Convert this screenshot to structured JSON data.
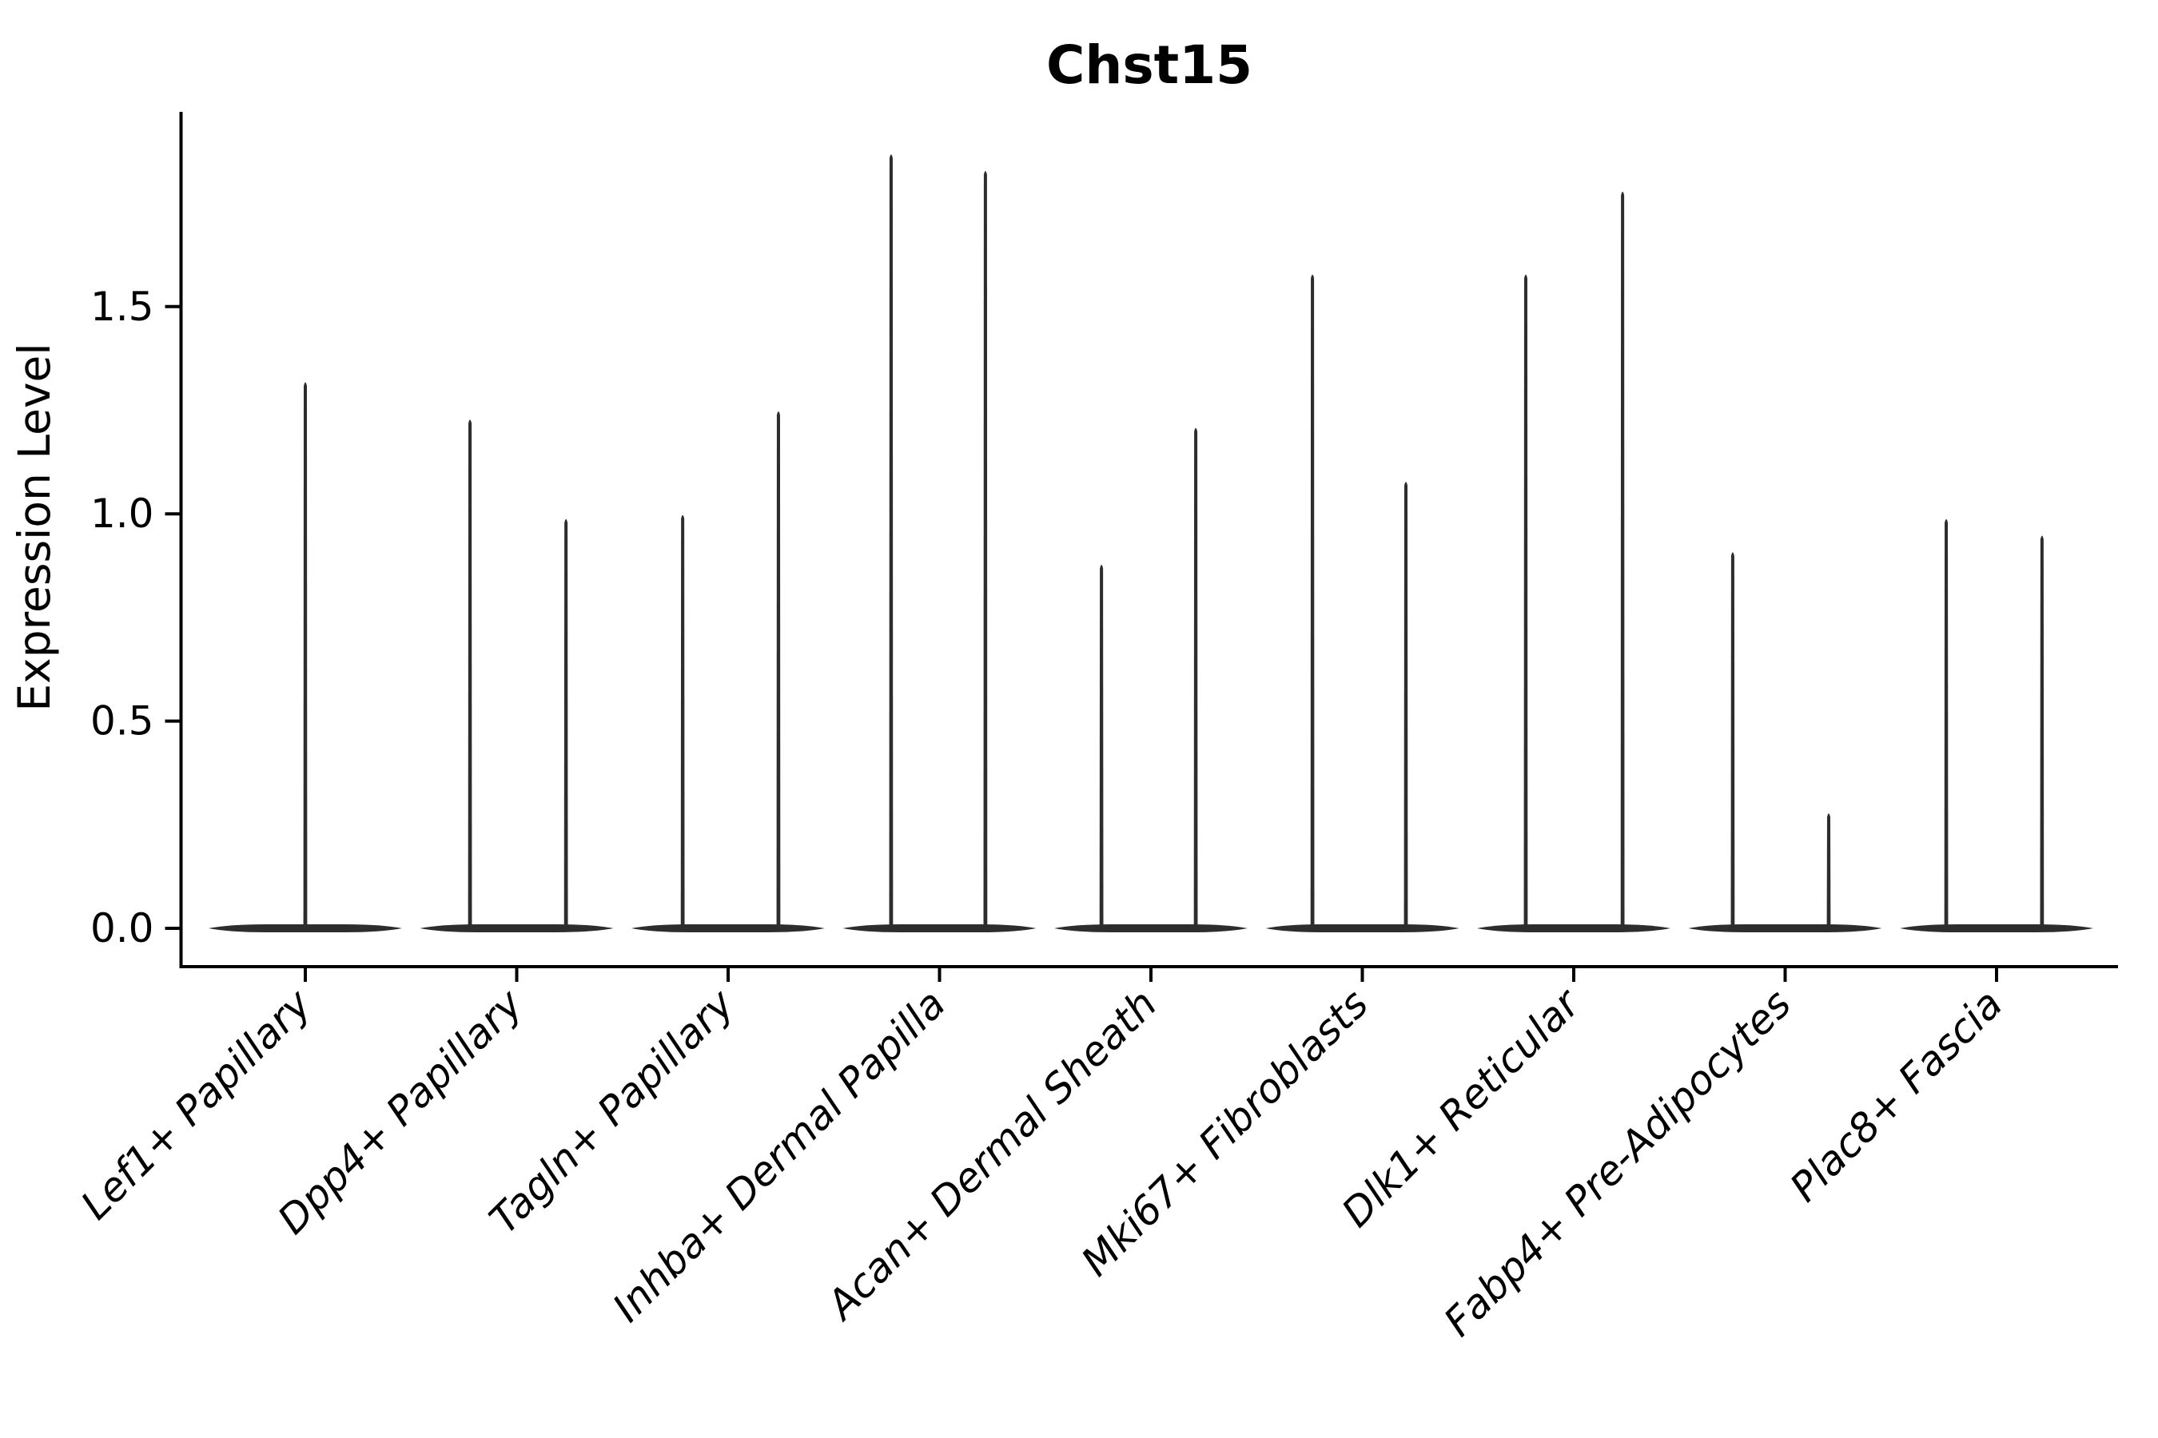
{
  "chart_data": {
    "type": "violin",
    "title": "Chst15",
    "ylabel": "Expression Level",
    "xlabel": "",
    "yticks": [
      0.0,
      0.5,
      1.0,
      1.5
    ],
    "ylim": [
      -0.09,
      1.97
    ],
    "grid": false,
    "legend": "none",
    "x_tick_rotation_deg": 45,
    "categories": [
      "Lef1+ Papillary",
      "Dpp4+ Papillary",
      "Tagln+ Papillary",
      "Inhba+ Dermal Papilla",
      "Acan+ Dermal Sheath",
      "Mki67+ Fibroblasts",
      "Dlk1+ Reticular",
      "Fabp4+ Pre-Adipocytes",
      "Plac8+ Fascia"
    ],
    "colors": {
      "violin": "#2d2d2d",
      "axis": "#000000",
      "background": "#ffffff"
    },
    "violin_group_width": 0.91,
    "groups": [
      {
        "category": "Lef1+ Papillary",
        "violins": [
          {
            "offset": 0.0,
            "max_expression": 1.32
          }
        ]
      },
      {
        "category": "Dpp4+ Papillary",
        "violins": [
          {
            "offset": -0.221,
            "max_expression": 1.23
          },
          {
            "offset": 0.233,
            "max_expression": 0.99
          }
        ]
      },
      {
        "category": "Tagln+ Papillary",
        "violins": [
          {
            "offset": -0.215,
            "max_expression": 1.0
          },
          {
            "offset": 0.238,
            "max_expression": 1.25
          }
        ]
      },
      {
        "category": "Inhba+ Dermal Papilla",
        "violins": [
          {
            "offset": -0.229,
            "max_expression": 1.87
          },
          {
            "offset": 0.217,
            "max_expression": 1.83
          }
        ]
      },
      {
        "category": "Acan+ Dermal Sheath",
        "violins": [
          {
            "offset": -0.234,
            "max_expression": 0.88
          },
          {
            "offset": 0.212,
            "max_expression": 1.21
          }
        ]
      },
      {
        "category": "Mki67+ Fibroblasts",
        "violins": [
          {
            "offset": -0.236,
            "max_expression": 1.58
          },
          {
            "offset": 0.206,
            "max_expression": 1.08
          }
        ]
      },
      {
        "category": "Dlk1+ Reticular",
        "violins": [
          {
            "offset": -0.227,
            "max_expression": 1.58
          },
          {
            "offset": 0.231,
            "max_expression": 1.78
          }
        ]
      },
      {
        "category": "Fabp4+ Pre-Adipocytes",
        "violins": [
          {
            "offset": -0.248,
            "max_expression": 0.91
          },
          {
            "offset": 0.206,
            "max_expression": 0.28
          }
        ]
      },
      {
        "category": "Plac8+ Fascia",
        "violins": [
          {
            "offset": -0.238,
            "max_expression": 0.99
          },
          {
            "offset": 0.215,
            "max_expression": 0.95
          }
        ]
      }
    ]
  }
}
